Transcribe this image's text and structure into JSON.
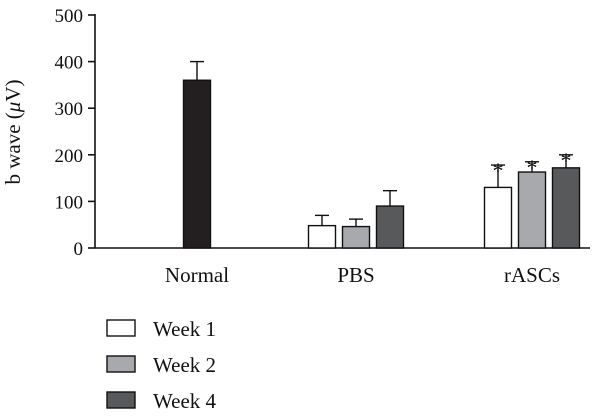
{
  "chart_data": {
    "type": "bar",
    "title": "",
    "xlabel": "",
    "ylabel": "b wave (μV)",
    "ylabel_parts": {
      "prefix": "b wave (",
      "symbol": "μ",
      "suffix": "V)"
    },
    "ylim": [
      0,
      500
    ],
    "yticks": [
      0,
      100,
      200,
      300,
      400,
      500
    ],
    "grid": false,
    "legend_position": "bottom-left",
    "significance_marker": "*",
    "groups": [
      {
        "name": "Normal",
        "bars": [
          {
            "series": "Normal",
            "color": "#231f20",
            "value": 360,
            "error": 40,
            "significant": false
          }
        ]
      },
      {
        "name": "PBS",
        "bars": [
          {
            "series": "Week 1",
            "color": "#ffffff",
            "value": 48,
            "error": 22,
            "significant": false
          },
          {
            "series": "Week 2",
            "color": "#a7a9ac",
            "value": 46,
            "error": 16,
            "significant": false
          },
          {
            "series": "Week 4",
            "color": "#58595b",
            "value": 90,
            "error": 33,
            "significant": false
          }
        ]
      },
      {
        "name": "rASCs",
        "bars": [
          {
            "series": "Week 1",
            "color": "#ffffff",
            "value": 130,
            "error": 48,
            "significant": true
          },
          {
            "series": "Week 2",
            "color": "#a7a9ac",
            "value": 163,
            "error": 22,
            "significant": true
          },
          {
            "series": "Week 4",
            "color": "#58595b",
            "value": 172,
            "error": 28,
            "significant": true
          }
        ]
      }
    ],
    "legend": [
      {
        "label": "Week 1",
        "color": "#ffffff"
      },
      {
        "label": "Week 2",
        "color": "#a7a9ac"
      },
      {
        "label": "Week 4",
        "color": "#58595b"
      }
    ]
  }
}
